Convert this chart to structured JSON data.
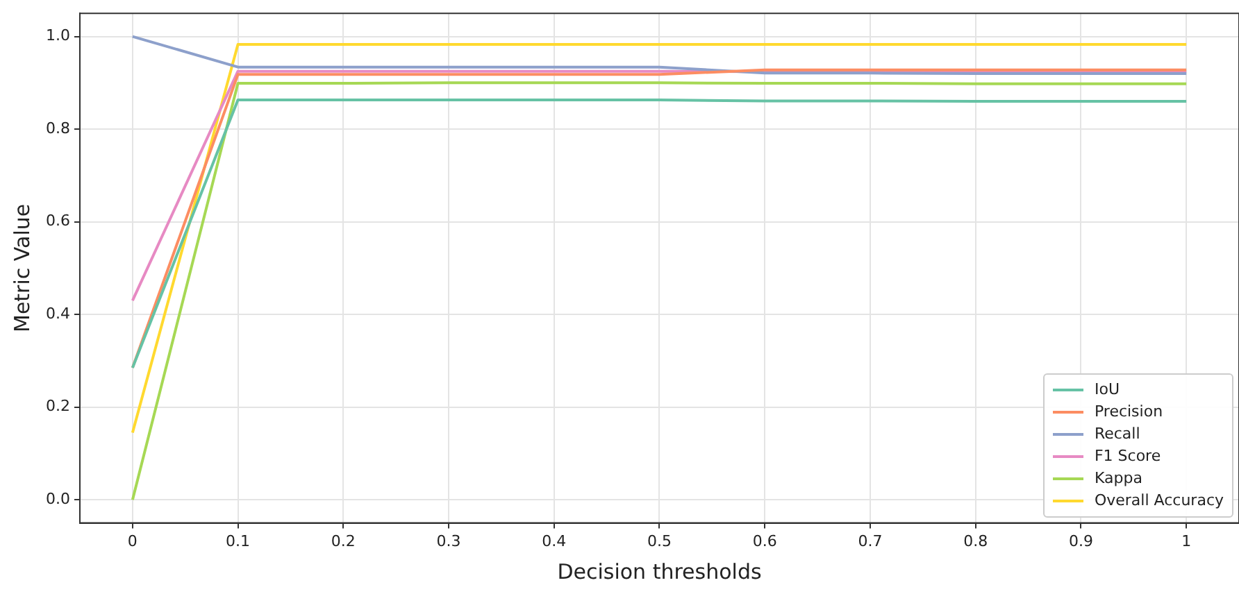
{
  "chart_data": {
    "type": "line",
    "xlabel": "Decision thresholds",
    "ylabel": "Metric Value",
    "x": [
      0,
      0.1,
      0.2,
      0.3,
      0.4,
      0.5,
      0.6,
      0.7,
      0.8,
      0.9,
      1.0
    ],
    "series": [
      {
        "name": "IoU",
        "color": "#66c2a5",
        "values": [
          0.285,
          0.863,
          0.863,
          0.863,
          0.863,
          0.863,
          0.861,
          0.861,
          0.86,
          0.86,
          0.86
        ]
      },
      {
        "name": "Precision",
        "color": "#fc8d62",
        "values": [
          0.285,
          0.918,
          0.918,
          0.918,
          0.918,
          0.918,
          0.928,
          0.928,
          0.928,
          0.928,
          0.928
        ]
      },
      {
        "name": "Recall",
        "color": "#8da0cb",
        "values": [
          1.0,
          0.934,
          0.934,
          0.934,
          0.934,
          0.934,
          0.921,
          0.921,
          0.92,
          0.92,
          0.92
        ]
      },
      {
        "name": "F1 Score",
        "color": "#e78ac3",
        "values": [
          0.43,
          0.925,
          0.925,
          0.925,
          0.925,
          0.925,
          0.924,
          0.924,
          0.924,
          0.924,
          0.924
        ]
      },
      {
        "name": "Kappa",
        "color": "#a6d854",
        "values": [
          0.0,
          0.899,
          0.899,
          0.9,
          0.9,
          0.9,
          0.899,
          0.899,
          0.898,
          0.898,
          0.898
        ]
      },
      {
        "name": "Overall Accuracy",
        "color": "#ffd92f",
        "values": [
          0.145,
          0.983,
          0.983,
          0.983,
          0.983,
          0.983,
          0.983,
          0.983,
          0.983,
          0.983,
          0.983
        ]
      }
    ],
    "xlim": [
      -0.05,
      1.05
    ],
    "xticks": [
      {
        "value": 0,
        "label": "0"
      },
      0.1,
      0.2,
      0.3,
      0.4,
      0.5,
      0.6,
      0.7,
      0.8,
      0.9,
      {
        "value": 1,
        "label": "1"
      }
    ],
    "ylim": [
      -0.05,
      1.05
    ],
    "yticks": [
      {
        "value": 0,
        "label": "0.0"
      },
      0.2,
      0.4,
      0.6,
      0.8,
      {
        "value": 1,
        "label": "1.0"
      }
    ],
    "grid": true,
    "legend": "bottom right",
    "line_style": "solid",
    "marker": "none"
  }
}
